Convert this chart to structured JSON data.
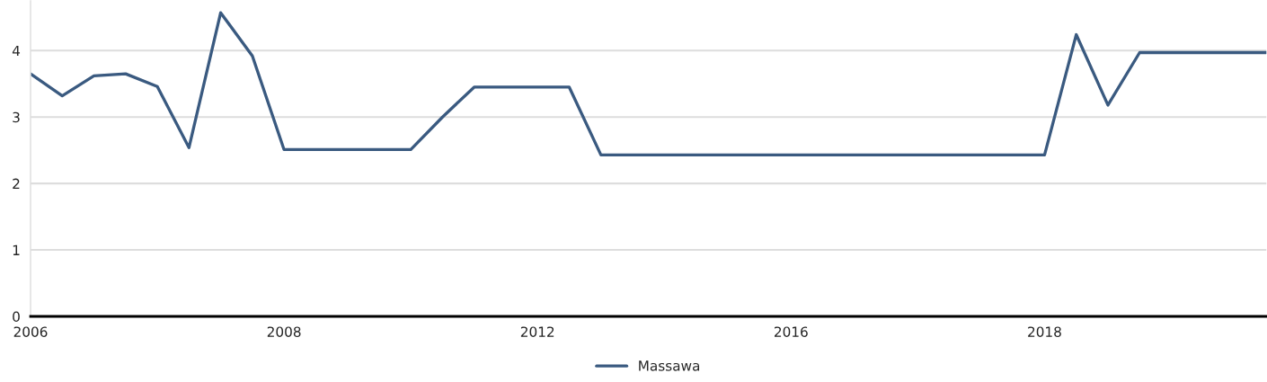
{
  "chart_data": {
    "type": "line",
    "categories": [
      "2006",
      null,
      null,
      null,
      null,
      null,
      null,
      null,
      "2008",
      null,
      null,
      null,
      null,
      null,
      null,
      null,
      "2012",
      null,
      null,
      null,
      null,
      null,
      null,
      null,
      "2016",
      null,
      null,
      null,
      null,
      null,
      null,
      null,
      "2018",
      null,
      null,
      null,
      null,
      null,
      null,
      null
    ],
    "series": [
      {
        "name": "Massawa",
        "color": "#3a5a80",
        "values": [
          3.65,
          3.32,
          3.62,
          3.65,
          3.46,
          2.54,
          4.57,
          3.92,
          2.51,
          2.51,
          2.51,
          2.51,
          2.51,
          3.0,
          3.45,
          3.45,
          3.45,
          3.45,
          2.43,
          2.43,
          2.43,
          2.43,
          2.43,
          2.43,
          2.43,
          2.43,
          2.43,
          2.43,
          2.43,
          2.43,
          2.43,
          2.43,
          2.43,
          4.24,
          3.18,
          3.97,
          3.97,
          3.97,
          3.97,
          3.97
        ]
      }
    ],
    "ylim": [
      0,
      4.75
    ],
    "yticks": [
      0,
      1,
      2,
      3,
      4
    ],
    "grid": "y",
    "legend": "bottom",
    "marker": "none",
    "line_style": "solid"
  }
}
